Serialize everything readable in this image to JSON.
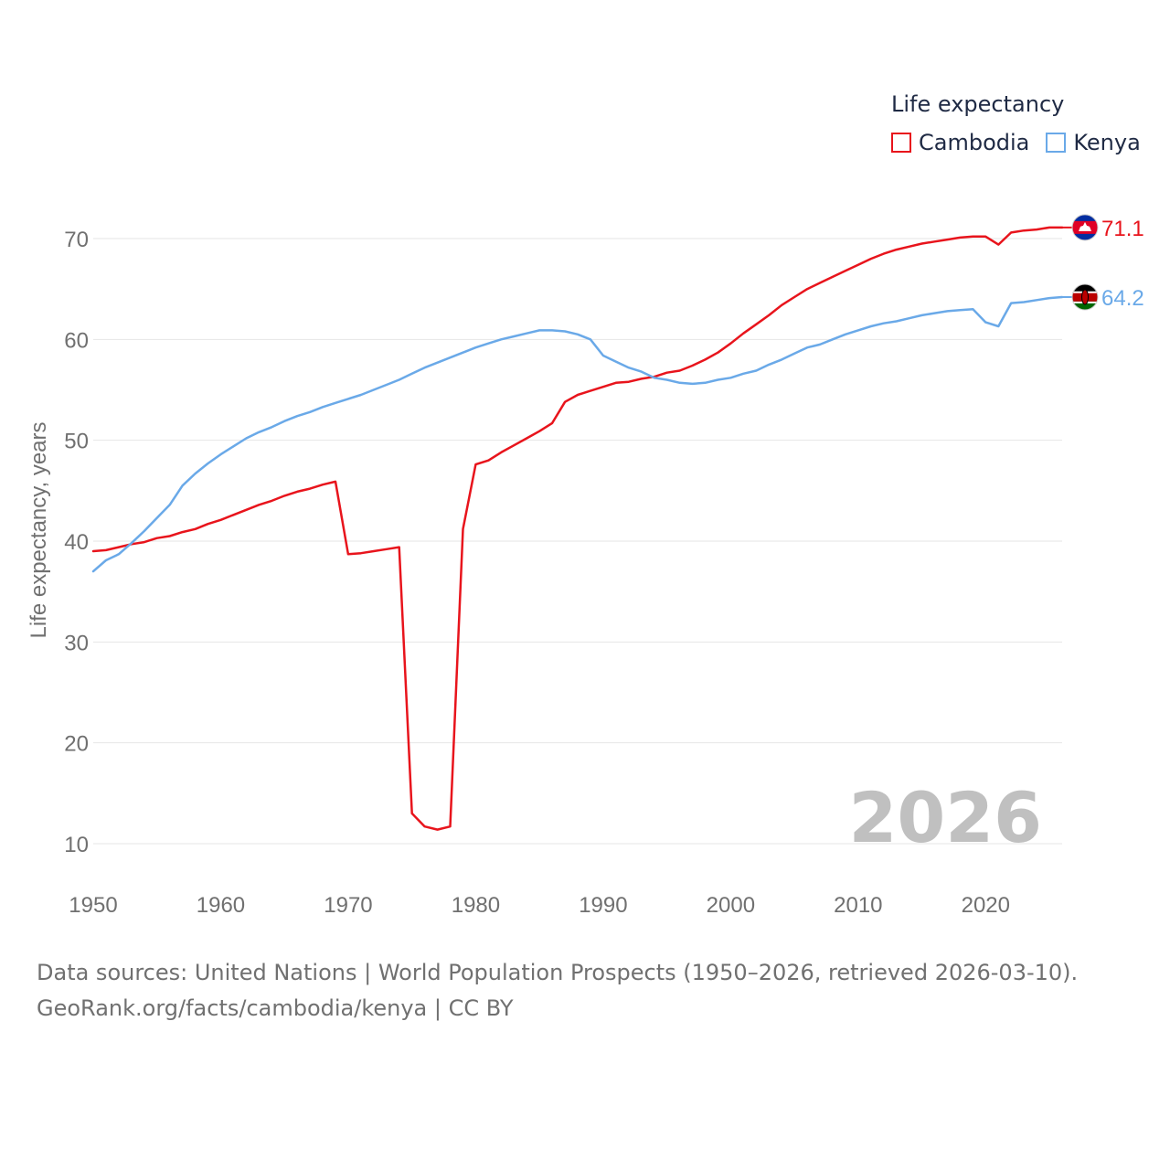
{
  "legend": {
    "title": "Life expectancy"
  },
  "year_badge": "2026",
  "footer": {
    "sources": "Data sources: United Nations | World Population Prospects (1950–2026, retrieved 2026-03-10).",
    "credit": "GeoRank.org/facts/cambodia/kenya | CC BY"
  },
  "colors": {
    "cambodia": "#e8141c",
    "kenya": "#6aa9e8",
    "grid": "#e6e6e6",
    "axis_text": "#707070"
  },
  "icons": {
    "cambodia": "cambodia-flag-icon",
    "kenya": "kenya-flag-icon"
  },
  "chart_data": {
    "type": "line",
    "title": "",
    "xlabel": "",
    "ylabel": "Life expectancy, years",
    "xlim": [
      1950,
      2026
    ],
    "ylim": [
      10,
      75
    ],
    "xticks": [
      1950,
      1960,
      1970,
      1980,
      1990,
      2000,
      2010,
      2020
    ],
    "yticks": [
      10,
      20,
      30,
      40,
      50,
      60,
      70
    ],
    "grid": true,
    "legend_position": "top-right",
    "series": [
      {
        "name": "Cambodia",
        "color": "#e8141c",
        "end_label": "71.1",
        "points": [
          [
            1950,
            39.0
          ],
          [
            1951,
            39.1
          ],
          [
            1952,
            39.4
          ],
          [
            1953,
            39.7
          ],
          [
            1954,
            39.9
          ],
          [
            1955,
            40.3
          ],
          [
            1956,
            40.5
          ],
          [
            1957,
            40.9
          ],
          [
            1958,
            41.2
          ],
          [
            1959,
            41.7
          ],
          [
            1960,
            42.1
          ],
          [
            1961,
            42.6
          ],
          [
            1962,
            43.1
          ],
          [
            1963,
            43.6
          ],
          [
            1964,
            44.0
          ],
          [
            1965,
            44.5
          ],
          [
            1966,
            44.9
          ],
          [
            1967,
            45.2
          ],
          [
            1968,
            45.6
          ],
          [
            1969,
            45.9
          ],
          [
            1970,
            38.7
          ],
          [
            1971,
            38.8
          ],
          [
            1972,
            39.0
          ],
          [
            1973,
            39.2
          ],
          [
            1974,
            39.4
          ],
          [
            1975,
            13.0
          ],
          [
            1976,
            11.7
          ],
          [
            1977,
            11.4
          ],
          [
            1978,
            11.7
          ],
          [
            1979,
            41.2
          ],
          [
            1980,
            47.6
          ],
          [
            1981,
            48.0
          ],
          [
            1982,
            48.8
          ],
          [
            1983,
            49.5
          ],
          [
            1984,
            50.2
          ],
          [
            1985,
            50.9
          ],
          [
            1986,
            51.7
          ],
          [
            1987,
            53.8
          ],
          [
            1988,
            54.5
          ],
          [
            1989,
            54.9
          ],
          [
            1990,
            55.3
          ],
          [
            1991,
            55.7
          ],
          [
            1992,
            55.8
          ],
          [
            1993,
            56.1
          ],
          [
            1994,
            56.3
          ],
          [
            1995,
            56.7
          ],
          [
            1996,
            56.9
          ],
          [
            1997,
            57.4
          ],
          [
            1998,
            58.0
          ],
          [
            1999,
            58.7
          ],
          [
            2000,
            59.6
          ],
          [
            2001,
            60.6
          ],
          [
            2002,
            61.5
          ],
          [
            2003,
            62.4
          ],
          [
            2004,
            63.4
          ],
          [
            2005,
            64.2
          ],
          [
            2006,
            65.0
          ],
          [
            2007,
            65.6
          ],
          [
            2008,
            66.2
          ],
          [
            2009,
            66.8
          ],
          [
            2010,
            67.4
          ],
          [
            2011,
            68.0
          ],
          [
            2012,
            68.5
          ],
          [
            2013,
            68.9
          ],
          [
            2014,
            69.2
          ],
          [
            2015,
            69.5
          ],
          [
            2016,
            69.7
          ],
          [
            2017,
            69.9
          ],
          [
            2018,
            70.1
          ],
          [
            2019,
            70.2
          ],
          [
            2020,
            70.2
          ],
          [
            2021,
            69.4
          ],
          [
            2022,
            70.6
          ],
          [
            2023,
            70.8
          ],
          [
            2024,
            70.9
          ],
          [
            2025,
            71.1
          ],
          [
            2026,
            71.1
          ]
        ]
      },
      {
        "name": "Kenya",
        "color": "#6aa9e8",
        "end_label": "64.2",
        "points": [
          [
            1950,
            37.0
          ],
          [
            1951,
            38.1
          ],
          [
            1952,
            38.7
          ],
          [
            1953,
            39.8
          ],
          [
            1954,
            41.0
          ],
          [
            1955,
            42.3
          ],
          [
            1956,
            43.6
          ],
          [
            1957,
            45.5
          ],
          [
            1958,
            46.7
          ],
          [
            1959,
            47.7
          ],
          [
            1960,
            48.6
          ],
          [
            1961,
            49.4
          ],
          [
            1962,
            50.2
          ],
          [
            1963,
            50.8
          ],
          [
            1964,
            51.3
          ],
          [
            1965,
            51.9
          ],
          [
            1966,
            52.4
          ],
          [
            1967,
            52.8
          ],
          [
            1968,
            53.3
          ],
          [
            1969,
            53.7
          ],
          [
            1970,
            54.1
          ],
          [
            1971,
            54.5
          ],
          [
            1972,
            55.0
          ],
          [
            1973,
            55.5
          ],
          [
            1974,
            56.0
          ],
          [
            1975,
            56.6
          ],
          [
            1976,
            57.2
          ],
          [
            1977,
            57.7
          ],
          [
            1978,
            58.2
          ],
          [
            1979,
            58.7
          ],
          [
            1980,
            59.2
          ],
          [
            1981,
            59.6
          ],
          [
            1982,
            60.0
          ],
          [
            1983,
            60.3
          ],
          [
            1984,
            60.6
          ],
          [
            1985,
            60.9
          ],
          [
            1986,
            60.9
          ],
          [
            1987,
            60.8
          ],
          [
            1988,
            60.5
          ],
          [
            1989,
            60.0
          ],
          [
            1990,
            58.4
          ],
          [
            1991,
            57.8
          ],
          [
            1992,
            57.2
          ],
          [
            1993,
            56.8
          ],
          [
            1994,
            56.2
          ],
          [
            1995,
            56.0
          ],
          [
            1996,
            55.7
          ],
          [
            1997,
            55.6
          ],
          [
            1998,
            55.7
          ],
          [
            1999,
            56.0
          ],
          [
            2000,
            56.2
          ],
          [
            2001,
            56.6
          ],
          [
            2002,
            56.9
          ],
          [
            2003,
            57.5
          ],
          [
            2004,
            58.0
          ],
          [
            2005,
            58.6
          ],
          [
            2006,
            59.2
          ],
          [
            2007,
            59.5
          ],
          [
            2008,
            60.0
          ],
          [
            2009,
            60.5
          ],
          [
            2010,
            60.9
          ],
          [
            2011,
            61.3
          ],
          [
            2012,
            61.6
          ],
          [
            2013,
            61.8
          ],
          [
            2014,
            62.1
          ],
          [
            2015,
            62.4
          ],
          [
            2016,
            62.6
          ],
          [
            2017,
            62.8
          ],
          [
            2018,
            62.9
          ],
          [
            2019,
            63.0
          ],
          [
            2020,
            61.7
          ],
          [
            2021,
            61.3
          ],
          [
            2022,
            63.6
          ],
          [
            2023,
            63.7
          ],
          [
            2024,
            63.9
          ],
          [
            2025,
            64.1
          ],
          [
            2026,
            64.2
          ]
        ]
      }
    ]
  }
}
